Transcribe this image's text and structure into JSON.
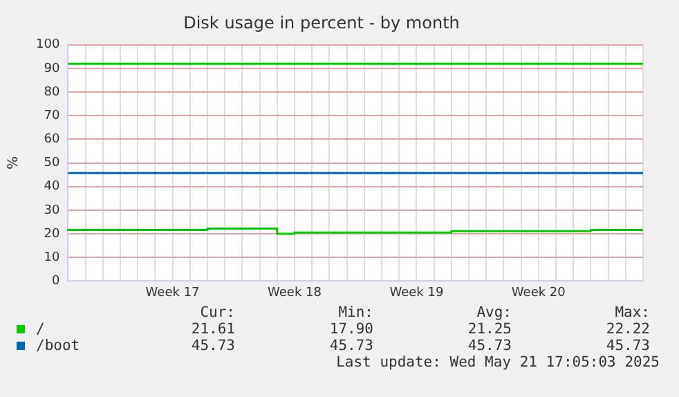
{
  "chart_data": {
    "type": "step",
    "title": "Disk usage in percent - by month",
    "ylabel": "%",
    "categories": [
      null,
      null,
      null,
      null,
      null,
      null,
      "Week 17",
      null,
      null,
      null,
      null,
      null,
      null,
      "Week 18",
      null,
      null,
      null,
      null,
      null,
      null,
      "Week 19",
      null,
      null,
      null,
      null,
      null,
      null,
      "Week 20",
      null,
      null,
      null,
      null,
      null,
      null
    ],
    "series": [
      {
        "name": "/",
        "color": "#00cc00",
        "values": [
          21.2,
          21.6,
          21.6,
          21.6,
          21.6,
          21.6,
          21.6,
          21.6,
          21.6,
          22.2,
          22.2,
          22.2,
          22.2,
          20.0,
          20.5,
          20.5,
          20.5,
          20.5,
          20.5,
          20.5,
          20.5,
          20.5,
          20.5,
          21.1,
          21.1,
          21.1,
          21.1,
          21.1,
          21.1,
          21.1,
          21.1,
          21.6,
          21.6,
          21.6
        ]
      },
      {
        "name": "/boot",
        "color": "#0066b3",
        "values": [
          45.7,
          45.7,
          45.7,
          45.7,
          45.7,
          45.7,
          45.7,
          45.7,
          45.7,
          45.7,
          45.7,
          45.7,
          45.7,
          45.7,
          45.7,
          45.7,
          45.7,
          45.7,
          45.7,
          45.7,
          45.7,
          45.7,
          45.7,
          45.7,
          45.7,
          45.7,
          45.7,
          45.7,
          45.7,
          45.7,
          45.7,
          45.7,
          45.7,
          45.7
        ]
      }
    ],
    "ref_lines": [
      {
        "axis": "y",
        "value": 92,
        "color": "#00cc00"
      }
    ],
    "ylim": [
      0,
      100
    ],
    "yticks": [
      0,
      10,
      20,
      30,
      40,
      50,
      60,
      70,
      80,
      90,
      100
    ],
    "grid": true,
    "legend": "bottom",
    "marker": "none",
    "line_style": "solid",
    "annotations": [
      "Cur:",
      "Min:",
      "Avg:",
      "Max:",
      "21.61",
      "17.90",
      "21.25",
      "22.22",
      "45.73",
      "45.73",
      "45.73",
      "45.73",
      "Last update: Wed May 21 17:05:03 2025"
    ]
  }
}
